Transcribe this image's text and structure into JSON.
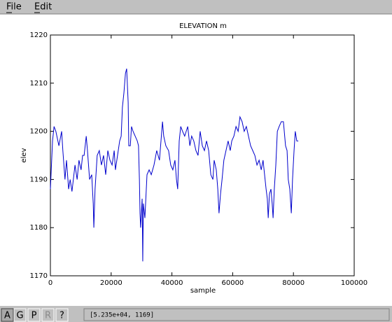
{
  "menu": {
    "items": [
      "File",
      "Edit"
    ]
  },
  "chart_data": {
    "type": "line",
    "title": "ELEVATION m",
    "xlabel": "sample",
    "ylabel": "elev",
    "xlim": [
      0,
      100000
    ],
    "ylim": [
      1170,
      1220
    ],
    "xticks": [
      0,
      20000,
      40000,
      60000,
      80000,
      100000
    ],
    "yticks": [
      1170,
      1180,
      1190,
      1200,
      1210,
      1220
    ],
    "series": [
      {
        "name": "elev",
        "color": "#0000cc",
        "x": [
          0,
          700,
          1200,
          1800,
          2800,
          3700,
          4100,
          4800,
          5300,
          6000,
          6500,
          7100,
          8100,
          8800,
          9400,
          10100,
          10600,
          11100,
          11800,
          12200,
          12900,
          13600,
          14100,
          14300,
          14700,
          15400,
          16100,
          16800,
          17500,
          18200,
          18900,
          19600,
          20300,
          21000,
          21400,
          22100,
          22800,
          23300,
          23700,
          24200,
          24700,
          25100,
          25600,
          25800,
          26300,
          26700,
          27200,
          27900,
          28600,
          29000,
          29300,
          29500,
          29700,
          30200,
          30400,
          30600,
          31100,
          31800,
          32500,
          33200,
          34100,
          35000,
          35900,
          36900,
          37300,
          38000,
          38900,
          39600,
          40300,
          41000,
          41500,
          41900,
          42400,
          42900,
          43500,
          44200,
          45200,
          45900,
          46500,
          47200,
          47900,
          48600,
          49300,
          50000,
          50700,
          51400,
          52100,
          52800,
          53500,
          53900,
          54600,
          55100,
          55500,
          56000,
          56500,
          57100,
          57800,
          58500,
          59200,
          59700,
          60400,
          61100,
          61800,
          62400,
          63100,
          63800,
          64500,
          65200,
          65900,
          66600,
          67300,
          68000,
          68700,
          69400,
          70000,
          70500,
          71000,
          71400,
          71700,
          72100,
          72600,
          73000,
          73300,
          73700,
          74200,
          74700,
          75300,
          76000,
          76700,
          77400,
          77900,
          78300,
          78800,
          79300,
          79700,
          80200,
          80600,
          81100,
          81600
        ],
        "values": [
          1188,
          1198,
          1201,
          1200,
          1197,
          1200,
          1196,
          1190,
          1194,
          1188,
          1190,
          1187.5,
          1193,
          1190,
          1194,
          1192,
          1195,
          1195,
          1199,
          1196,
          1190,
          1191,
          1185,
          1180,
          1188,
          1195,
          1196,
          1193,
          1195,
          1191,
          1196,
          1194,
          1193,
          1196,
          1192,
          1195,
          1198,
          1199,
          1205,
          1208,
          1212,
          1213,
          1206,
          1197,
          1197,
          1201,
          1200,
          1199,
          1198,
          1197,
          1190,
          1183,
          1180,
          1186,
          1173,
          1185,
          1182,
          1191,
          1192,
          1191,
          1193,
          1196,
          1194,
          1202,
          1199,
          1197,
          1196,
          1193,
          1192,
          1194,
          1190,
          1188,
          1198,
          1201,
          1200,
          1199,
          1201,
          1197,
          1199,
          1198,
          1196,
          1195,
          1200,
          1197,
          1196,
          1198,
          1196,
          1191,
          1190,
          1194,
          1192,
          1188,
          1183,
          1187,
          1190,
          1194,
          1196,
          1198,
          1196,
          1198,
          1199,
          1201,
          1200,
          1203,
          1202,
          1200,
          1201,
          1199,
          1197,
          1196,
          1195,
          1193,
          1194,
          1192,
          1194,
          1191,
          1188,
          1186,
          1182,
          1187,
          1188,
          1185,
          1182,
          1188,
          1193,
          1200,
          1201,
          1202,
          1202,
          1197,
          1196,
          1190,
          1188,
          1183,
          1190,
          1196,
          1200,
          1198,
          1198
        ]
      }
    ]
  },
  "toolbar": {
    "buttons": [
      "A",
      "G",
      "P",
      "R",
      "?"
    ],
    "status": "[5.235e+04, 1169]"
  }
}
